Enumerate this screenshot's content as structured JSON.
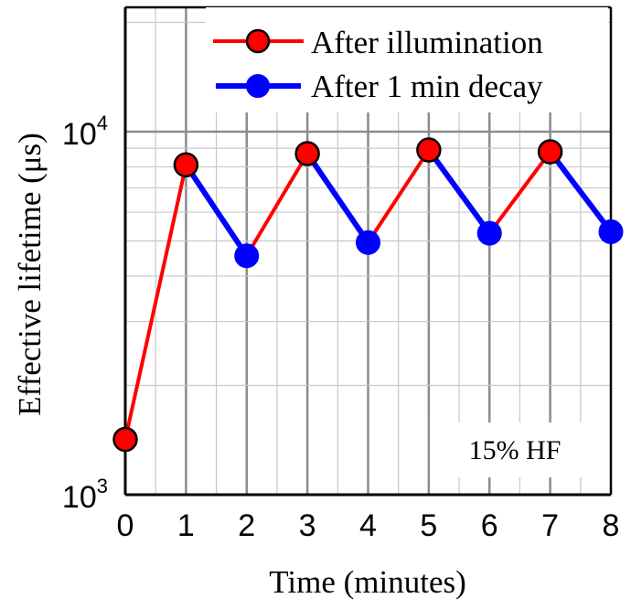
{
  "chart_data": {
    "type": "line",
    "xlabel": "Time (minutes)",
    "ylabel": "Effective lifetime (μs)",
    "y_scale": "log",
    "xlim": [
      0,
      8
    ],
    "ylim": [
      1000,
      22000
    ],
    "grid": true,
    "legend_position": "top-right",
    "x_tick_labels": [
      "0",
      "1",
      "2",
      "3",
      "4",
      "5",
      "6",
      "7",
      "8"
    ],
    "y_tick_labels": [
      {
        "base": "10",
        "exp": "3"
      },
      {
        "base": "10",
        "exp": "4"
      }
    ],
    "annotation": "15% HF",
    "series": [
      {
        "name": "After illumination",
        "color": "#ff0000",
        "marker_fill": "#ff0000",
        "points": [
          [
            0,
            1420
          ],
          [
            1,
            8100
          ],
          [
            3,
            8700
          ],
          [
            5,
            8900
          ],
          [
            7,
            8800
          ]
        ]
      },
      {
        "name": "After 1 min decay",
        "color": "#0000ff",
        "marker_fill": "#0000ff",
        "points": [
          [
            1,
            8100
          ],
          [
            2,
            4550
          ],
          [
            3,
            8700
          ],
          [
            4,
            4950
          ],
          [
            5,
            8900
          ],
          [
            6,
            5250
          ],
          [
            7,
            8800
          ],
          [
            8,
            5300
          ]
        ]
      }
    ],
    "path": [
      [
        0,
        1420
      ],
      [
        1,
        8100
      ],
      [
        2,
        4550
      ],
      [
        3,
        8700
      ],
      [
        4,
        4950
      ],
      [
        5,
        8900
      ],
      [
        6,
        5250
      ],
      [
        7,
        8800
      ],
      [
        8,
        5300
      ]
    ]
  }
}
